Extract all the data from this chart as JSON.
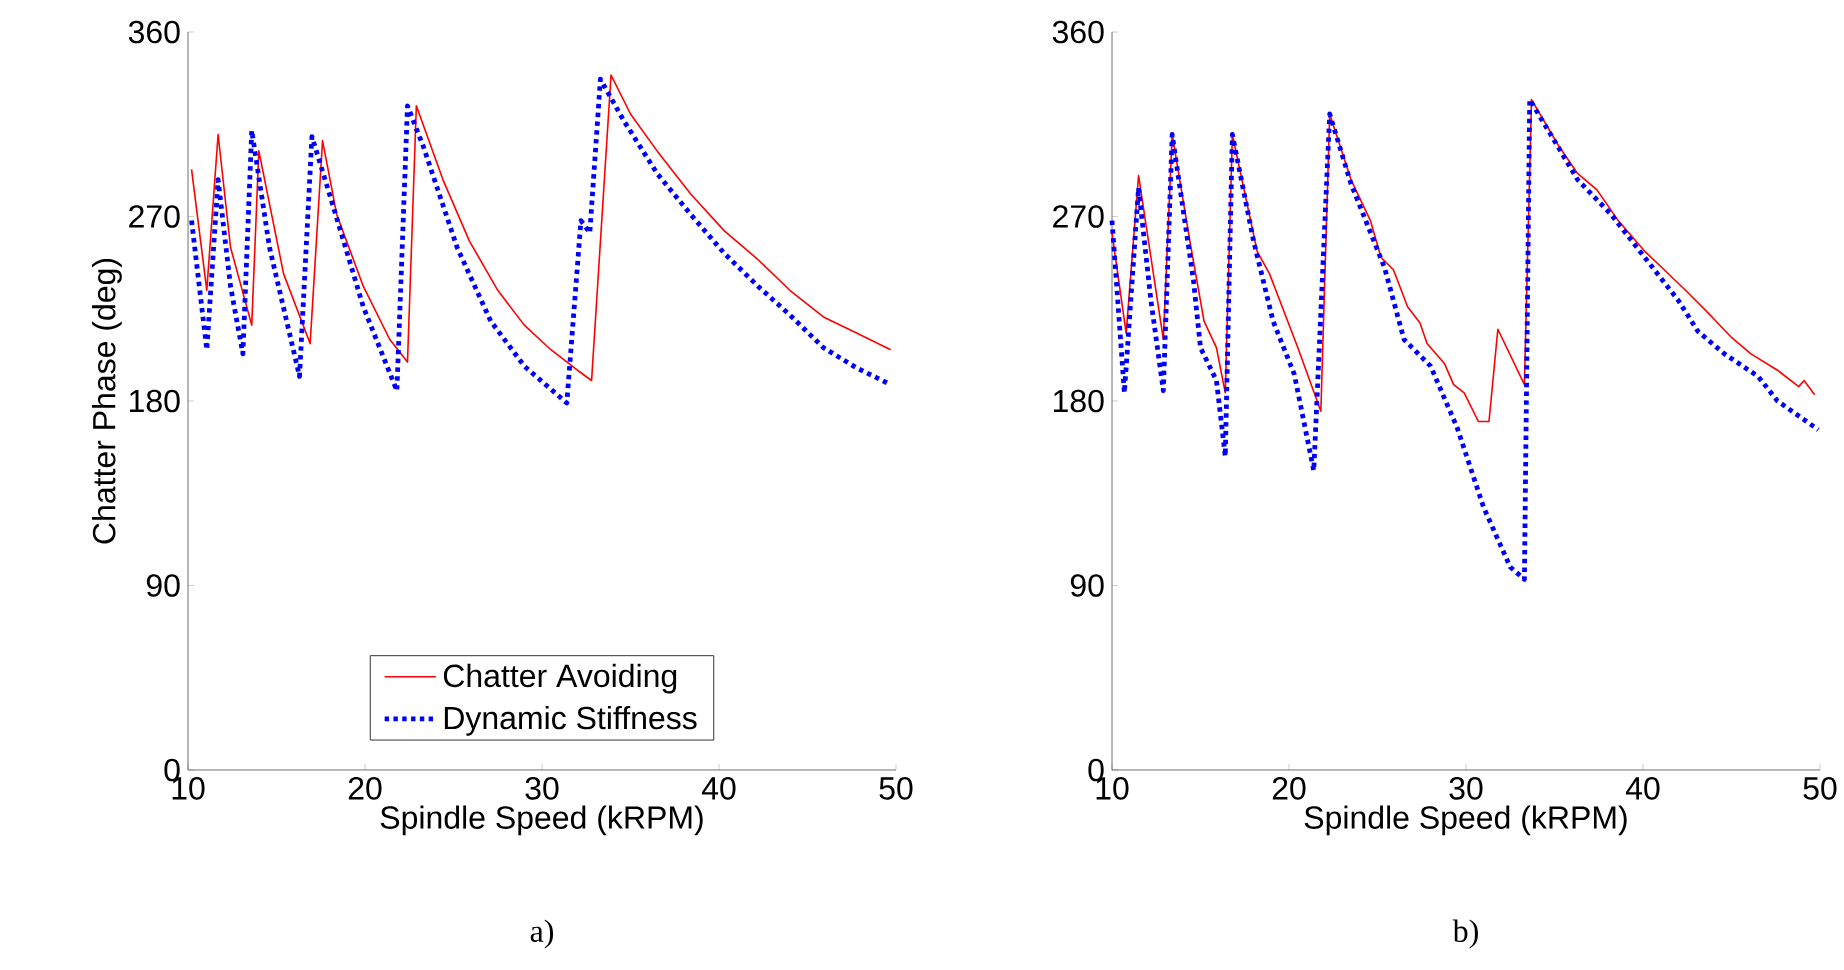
{
  "chart_data": [
    {
      "type": "line",
      "xlabel": "Spindle Speed (kRPM)",
      "ylabel": "Chatter Phase (deg)",
      "xlim": [
        10,
        50
      ],
      "ylim": [
        0,
        360
      ],
      "xticks": [
        10,
        20,
        30,
        40,
        50
      ],
      "yticks": [
        0,
        90,
        180,
        270,
        360
      ],
      "legend": "bottom",
      "annotations": [
        "a)"
      ],
      "series": [
        {
          "name": "Chatter Avoiding",
          "color": "#ff0000",
          "line_style": "solid",
          "x": [
            10.2,
            11.06,
            11.7,
            12.4,
            13.6,
            14.0,
            15.4,
            16.9,
            17.6,
            18.4,
            19.9,
            21.4,
            22.4,
            22.9,
            24.4,
            25.9,
            27.5,
            29.0,
            30.5,
            32.0,
            32.8,
            33.9,
            35.0,
            36.5,
            38.4,
            40.3,
            42.2,
            44.0,
            45.9,
            47.8,
            49.7
          ],
          "values": [
            293,
            234,
            310,
            255,
            217,
            302,
            242,
            208,
            307,
            271,
            236,
            210,
            199,
            324,
            288,
            258,
            234,
            217,
            205,
            195,
            190,
            339,
            320,
            302,
            281,
            263,
            249,
            234,
            221,
            213,
            205
          ]
        },
        {
          "name": "Dynamic Stiffness",
          "color": "#0000ff",
          "line_style": "dotted",
          "x": [
            10.2,
            11.06,
            11.7,
            12.4,
            13.1,
            13.6,
            14.6,
            16.3,
            17.0,
            18.2,
            19.9,
            21.8,
            22.4,
            23.3,
            25.2,
            27.1,
            29.0,
            31.4,
            32.2,
            32.7,
            33.3,
            34.6,
            36.5,
            38.4,
            40.3,
            42.2,
            44.0,
            45.9,
            47.8,
            49.7
          ],
          "values": [
            268,
            205,
            288,
            236,
            203,
            312,
            255,
            192,
            309,
            275,
            226,
            185,
            324,
            304,
            255,
            219,
            197,
            179,
            268,
            262,
            337,
            317,
            291,
            271,
            252,
            236,
            222,
            206,
            196,
            188
          ]
        }
      ]
    },
    {
      "type": "line",
      "xlabel": "Spindle Speed (kRPM)",
      "xlim": [
        10,
        50
      ],
      "ylim": [
        0,
        360
      ],
      "xticks": [
        10,
        20,
        30,
        40,
        50
      ],
      "yticks": [
        0,
        90,
        180,
        270,
        360
      ],
      "annotations": [
        "b)"
      ],
      "series": [
        {
          "color": "#ff0000",
          "line_style": "solid",
          "x": [
            10.0,
            10.8,
            11.5,
            12.9,
            13.4,
            14.4,
            15.2,
            15.9,
            16.4,
            16.8,
            18.2,
            18.9,
            20.5,
            21.8,
            22.3,
            23.5,
            24.6,
            25.2,
            25.9,
            26.7,
            27.4,
            27.8,
            28.8,
            29.3,
            29.9,
            30.7,
            31.3,
            31.8,
            33.3,
            33.7,
            35.2,
            36.3,
            37.4,
            38.6,
            40.1,
            41.2,
            42.4,
            43.9,
            45.0,
            46.1,
            47.6,
            48.8,
            49.1,
            49.7
          ],
          "values": [
            262,
            213,
            290,
            210,
            310,
            258,
            219,
            206,
            184,
            310,
            253,
            242,
            206,
            175,
            320,
            288,
            268,
            250,
            244,
            226,
            218,
            208,
            198,
            188,
            184,
            170,
            170,
            215,
            188,
            327,
            305,
            291,
            283,
            268,
            253,
            244,
            234,
            221,
            211,
            203,
            195,
            187,
            190,
            183
          ]
        },
        {
          "color": "#0000ff",
          "line_style": "dotted",
          "x": [
            10.0,
            10.7,
            11.5,
            12.2,
            12.9,
            13.4,
            14.6,
            15.0,
            15.9,
            16.4,
            16.8,
            18.0,
            19.1,
            20.3,
            21.4,
            22.3,
            23.5,
            25.4,
            26.5,
            28.0,
            29.5,
            31.0,
            32.5,
            33.3,
            33.6,
            35.2,
            36.3,
            38.2,
            40.1,
            42.0,
            43.1,
            44.6,
            46.5,
            47.6,
            49.9
          ],
          "values": [
            268,
            184,
            284,
            229,
            185,
            310,
            239,
            206,
            190,
            153,
            310,
            258,
            219,
            193,
            146,
            320,
            286,
            245,
            210,
            197,
            167,
            128,
            99,
            93,
            327,
            304,
            288,
            271,
            250,
            229,
            214,
            203,
            192,
            180,
            166
          ]
        }
      ]
    }
  ]
}
